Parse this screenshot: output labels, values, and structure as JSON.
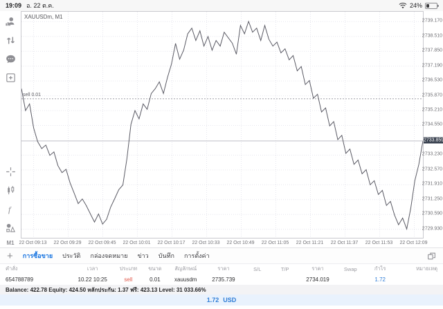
{
  "status_bar": {
    "time": "19:09",
    "date": "อ. 22 ต.ค.",
    "battery_percent": "24%"
  },
  "sidebar": {
    "items": [
      {
        "icon": "account"
      },
      {
        "icon": "quotes-arrows"
      },
      {
        "icon": "chat"
      },
      {
        "icon": "new-order"
      },
      {
        "icon": "crosshair"
      },
      {
        "icon": "chart-type"
      },
      {
        "icon": "indicators"
      },
      {
        "icon": "objects"
      }
    ],
    "timeframe": "M1"
  },
  "chart_data": {
    "type": "line",
    "title": "XAUUSDm, M1",
    "symbol": "XAUUSDm",
    "timeframe": "M1",
    "line_color": "#5a5a64",
    "grid": true,
    "y_range": [
      2729.55,
      2739.61
    ],
    "y_ticks": [
      "2739.170",
      "2738.510",
      "2737.850",
      "2737.190",
      "2736.530",
      "2735.870",
      "2735.210",
      "2734.550",
      "2733.230",
      "2732.570",
      "2731.910",
      "2731.250",
      "2730.590",
      "2729.930"
    ],
    "x_labels": [
      "22 Oct 09:13",
      "22 Oct 09:29",
      "22 Oct 09:45",
      "22 Oct 10:01",
      "22 Oct 10:17",
      "22 Oct 10:33",
      "22 Oct 10:49",
      "22 Oct 11:05",
      "22 Oct 11:21",
      "22 Oct 11:37",
      "22 Oct 11:53",
      "22 Oct 12:09"
    ],
    "current_price": 2733.859,
    "current_price_label": "2733.859",
    "position_line": {
      "price": 2735.739,
      "label": "sell 0.01"
    },
    "prices": [
      2736.19,
      2735.21,
      2735.51,
      2734.44,
      2733.83,
      2733.52,
      2733.68,
      2733.22,
      2733.37,
      2732.76,
      2732.45,
      2732.6,
      2731.99,
      2731.53,
      2731.07,
      2731.28,
      2730.98,
      2730.61,
      2730.25,
      2730.61,
      2730.16,
      2730.37,
      2730.92,
      2731.29,
      2731.69,
      2731.9,
      2733.06,
      2734.6,
      2735.21,
      2734.84,
      2735.51,
      2735.27,
      2735.97,
      2736.19,
      2736.49,
      2735.97,
      2736.68,
      2737.29,
      2738.2,
      2737.5,
      2737.9,
      2738.63,
      2738.88,
      2738.33,
      2738.76,
      2738.08,
      2738.51,
      2737.9,
      2738.33,
      2738.08,
      2738.7,
      2738.45,
      2738.21,
      2737.72,
      2739.0,
      2738.63,
      2739.18,
      2738.7,
      2738.88,
      2738.33,
      2739.0,
      2738.39,
      2738.08,
      2738.26,
      2737.78,
      2737.96,
      2737.47,
      2737.66,
      2736.98,
      2737.17,
      2736.37,
      2736.55,
      2735.76,
      2735.94,
      2735.15,
      2735.33,
      2734.53,
      2734.72,
      2733.92,
      2734.11,
      2733.31,
      2733.5,
      2732.82,
      2733.01,
      2732.4,
      2732.58,
      2731.91,
      2732.09,
      2731.48,
      2731.66,
      2730.99,
      2731.17,
      2730.56,
      2730.13,
      2730.43,
      2729.94,
      2730.86,
      2732.09,
      2732.82,
      2733.86
    ]
  },
  "tabs": {
    "add_label": "+",
    "items": [
      {
        "label": "การซื้อขาย",
        "active": true
      },
      {
        "label": "ประวัติ",
        "active": false
      },
      {
        "label": "กล่องจดหมาย",
        "active": false
      },
      {
        "label": "ข่าว",
        "active": false
      },
      {
        "label": "บันทึก",
        "active": false
      },
      {
        "label": "การตั้งค่า",
        "active": false
      }
    ]
  },
  "trade_table": {
    "headers": [
      "คำสั่ง",
      "เวลา",
      "ประเภท",
      "ขนาด",
      "สัญลักษณ์",
      "ราคา",
      "S/L",
      "T/P",
      "ราคา",
      "Swap",
      "กำไร",
      "หมายเหตุ"
    ],
    "row": [
      "654788789",
      "10.22 10:25",
      "sell",
      "0.01",
      "xauusdm",
      "2735.739",
      "",
      "",
      "2734.019",
      "",
      "1.72",
      ""
    ]
  },
  "account_bar": {
    "text": "Balance: 422.78 Equity: 424.50 หลักประกัน: 1.37 ฟรี: 423.13 Level: 31 033.66%"
  },
  "profit_bar": {
    "amount": "1.72",
    "currency": "USD"
  },
  "colors": {
    "accent_blue": "#1673e0",
    "profit_blue": "#2e7cd6",
    "sell_red": "#e0584a",
    "badge_bg": "#39414f"
  }
}
